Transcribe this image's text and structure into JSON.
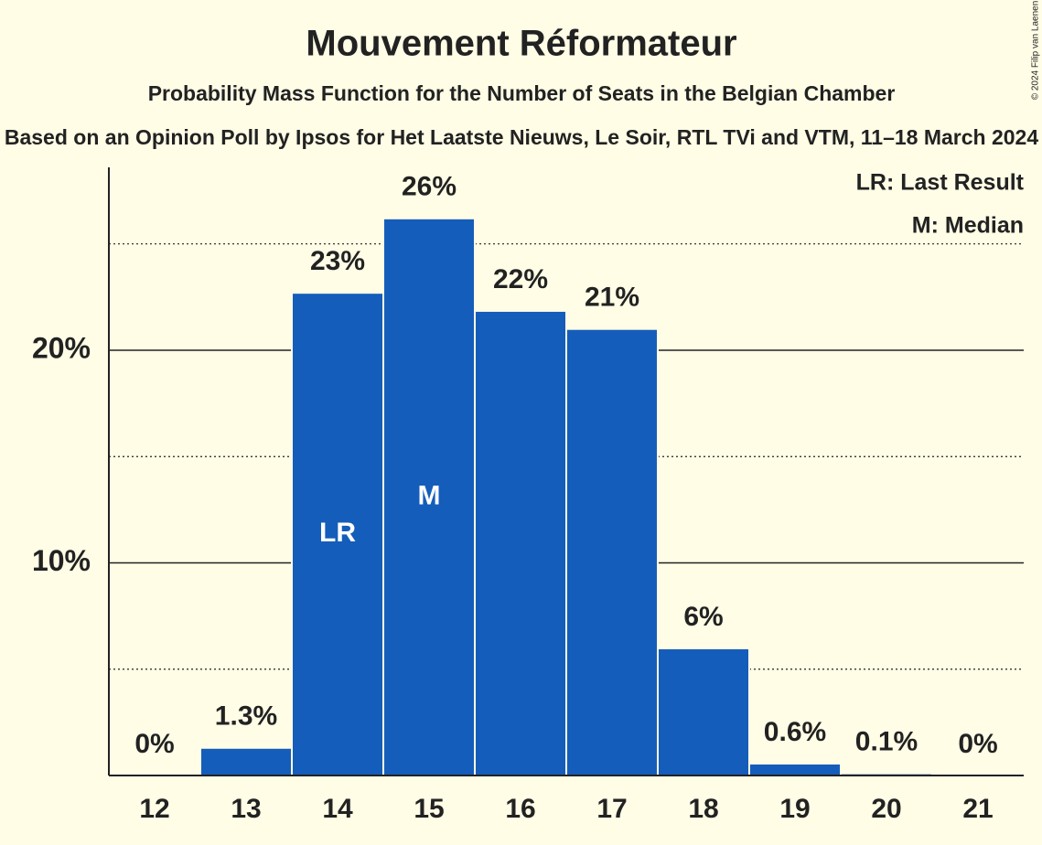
{
  "chart_data": {
    "type": "bar",
    "title": "Mouvement Réformateur",
    "subtitle": "Probability Mass Function for the Number of Seats in the Belgian Chamber",
    "subtitle2": "Based on an Opinion Poll by Ipsos for Het Laatste Nieuws, Le Soir, RTL TVi and VTM, 11–18 March 2024",
    "copyright": "© 2024 Filip van Laenen",
    "categories": [
      "12",
      "13",
      "14",
      "15",
      "16",
      "17",
      "18",
      "19",
      "20",
      "21"
    ],
    "values": [
      0,
      1.3,
      22.7,
      26.2,
      21.85,
      21.0,
      5.98,
      0.56,
      0.1,
      0
    ],
    "value_labels": [
      "0%",
      "1.3%",
      "23%",
      "26%",
      "22%",
      "21%",
      "6%",
      "0.6%",
      "0.1%",
      "0%"
    ],
    "color": "#155dba",
    "ylim": [
      0,
      28.6
    ],
    "yticks": [
      {
        "value": 10,
        "label": "10%"
      },
      {
        "value": 20,
        "label": "20%"
      }
    ],
    "minor_yticks": [
      5,
      15,
      25
    ],
    "grid": true,
    "markers": [
      {
        "category": "14",
        "label": "LR"
      },
      {
        "category": "15",
        "label": "M"
      }
    ],
    "legend": [
      "LR: Last Result",
      "M: Median"
    ]
  }
}
